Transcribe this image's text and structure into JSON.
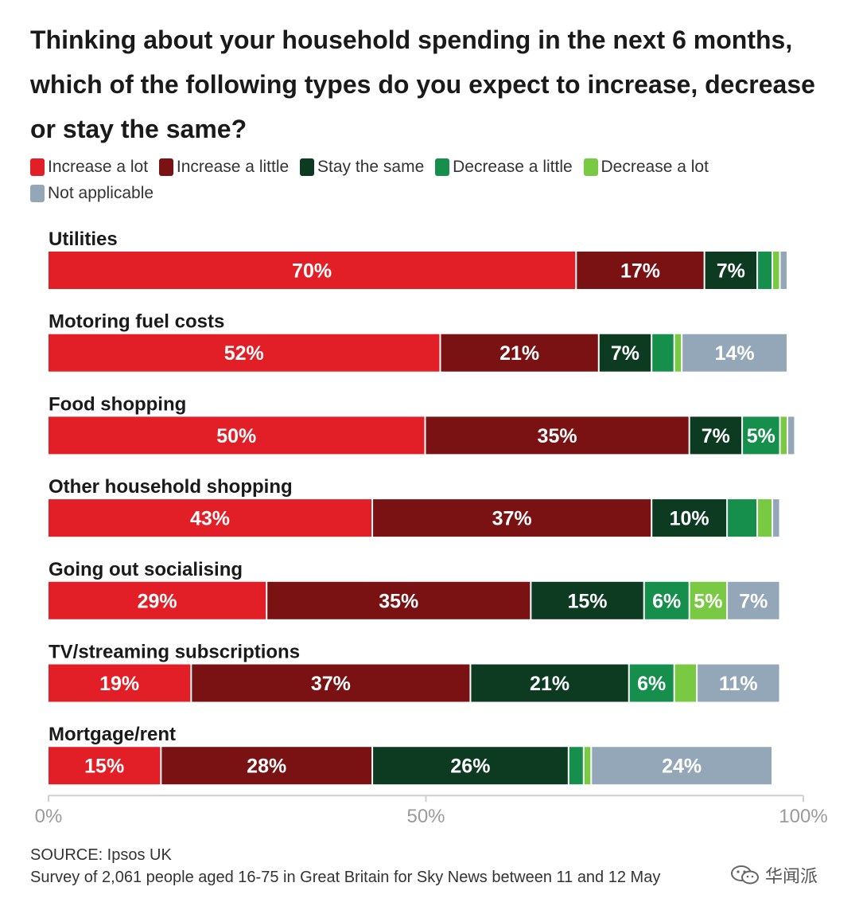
{
  "chart_data": {
    "type": "bar",
    "orientation": "horizontal",
    "stacked": true,
    "title": "Thinking about your household spending in the next 6 months, which of the following types do you expect to increase, decrease or stay the same?",
    "categories": [
      "Utilities",
      "Motoring fuel costs",
      "Food shopping",
      "Other household shopping",
      "Going out socialising",
      "TV/streaming subscriptions",
      "Mortgage/rent"
    ],
    "series": [
      {
        "name": "Increase a lot",
        "color": "#e21f26",
        "values": [
          70,
          52,
          50,
          43,
          29,
          19,
          15
        ]
      },
      {
        "name": "Increase a little",
        "color": "#7a1214",
        "values": [
          17,
          21,
          35,
          37,
          35,
          37,
          28
        ]
      },
      {
        "name": "Stay the same",
        "color": "#0d3b22",
        "values": [
          7,
          7,
          7,
          10,
          15,
          21,
          26
        ]
      },
      {
        "name": "Decrease a little",
        "color": "#168f4c",
        "values": [
          2,
          3,
          5,
          4,
          6,
          6,
          2
        ]
      },
      {
        "name": "Decrease a lot",
        "color": "#7ac943",
        "values": [
          1,
          1,
          1,
          2,
          5,
          3,
          1
        ]
      },
      {
        "name": "Not applicable",
        "color": "#94a7b9",
        "values": [
          1,
          14,
          1,
          1,
          7,
          11,
          24
        ]
      }
    ],
    "labels": [
      [
        "70%",
        "17%",
        "7%",
        "",
        "",
        ""
      ],
      [
        "52%",
        "21%",
        "7%",
        "",
        "",
        "14%"
      ],
      [
        "50%",
        "35%",
        "7%",
        "5%",
        "",
        ""
      ],
      [
        "43%",
        "37%",
        "10%",
        "",
        "",
        ""
      ],
      [
        "29%",
        "35%",
        "15%",
        "6%",
        "5%",
        "7%"
      ],
      [
        "19%",
        "37%",
        "21%",
        "6%",
        "",
        "11%"
      ],
      [
        "15%",
        "28%",
        "26%",
        "",
        "",
        "24%"
      ]
    ],
    "xlim": [
      0,
      100
    ],
    "xticks": [
      0,
      50,
      100
    ],
    "xtick_labels": [
      "0%",
      "50%",
      "100%"
    ],
    "xlabel": "",
    "ylabel": "",
    "legend_position": "top"
  },
  "footer": {
    "source": "SOURCE: Ipsos UK",
    "note": "Survey of 2,061 people aged 16-75 in Great Britain for Sky News between 11 and 12 May"
  },
  "watermark": {
    "text": "华闻派",
    "icon": "wechat-icon"
  }
}
